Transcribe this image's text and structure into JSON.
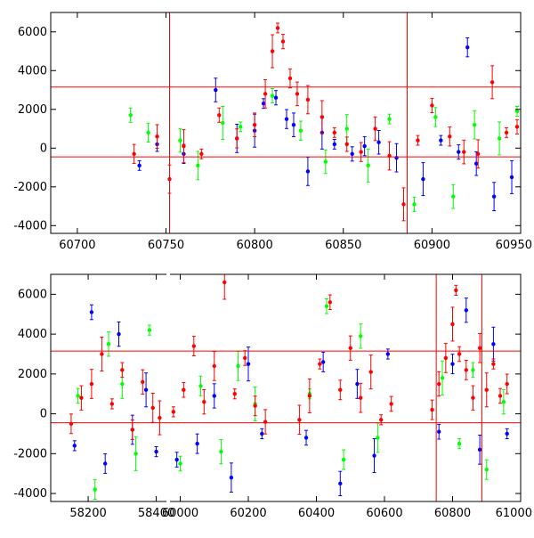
{
  "chart_data": [
    {
      "type": "scatter",
      "title": "",
      "xlabel": "",
      "ylabel": "",
      "xlim": [
        60685,
        60950
      ],
      "ylim": [
        -4400,
        7000
      ],
      "xticks": [
        60700,
        60750,
        60800,
        60850,
        60900,
        60950
      ],
      "xtick_labels": [
        "60700",
        "60750",
        "60800",
        "60850",
        "60900",
        "60950"
      ],
      "yticks": [
        -4000,
        -2000,
        0,
        2000,
        4000,
        6000
      ],
      "ytick_labels": [
        "-4000",
        "-2000",
        "0",
        "2000",
        "4000",
        "6000"
      ],
      "hlines": [
        3150,
        -450
      ],
      "vlines": [
        60752,
        60886
      ],
      "error_bars": true,
      "series": [
        {
          "color": "#0000ff",
          "x": [
            60735,
            60745,
            60760,
            60778,
            60790,
            60800,
            60805,
            60812,
            60818,
            60822,
            60830,
            60838,
            60845,
            60855,
            60862,
            60870,
            60880,
            60895,
            60905,
            60915,
            60920,
            60925,
            60935,
            60945
          ],
          "y": [
            -900,
            200,
            -300,
            3000,
            500,
            900,
            2300,
            2600,
            1500,
            1200,
            -1200,
            800,
            200,
            -300,
            100,
            300,
            -500,
            -1600,
            400,
            -200,
            5200,
            -800,
            -2500,
            -1500
          ]
        },
        {
          "color": "#00ff00",
          "x": [
            60730,
            60740,
            60758,
            60768,
            60782,
            60792,
            60810,
            60826,
            60840,
            60852,
            60864,
            60876,
            60890,
            60902,
            60912,
            60924,
            60938,
            60948
          ],
          "y": [
            1700,
            800,
            400,
            -900,
            1300,
            1100,
            2700,
            900,
            -700,
            1000,
            -900,
            1500,
            -2900,
            1600,
            -2500,
            1200,
            500,
            1900
          ]
        },
        {
          "color": "#ff0000",
          "x": [
            60732,
            60745,
            60752,
            60760,
            60770,
            60780,
            60790,
            60800,
            60806,
            60810,
            60813,
            60816,
            60820,
            60824,
            60830,
            60838,
            60845,
            60852,
            60860,
            60868,
            60876,
            60884,
            60892,
            60900,
            60910,
            60918,
            60926,
            60934,
            60942,
            60948
          ],
          "y": [
            -300,
            600,
            -1600,
            100,
            -300,
            1700,
            500,
            1200,
            2800,
            5000,
            6200,
            5500,
            3600,
            2800,
            2500,
            1600,
            800,
            200,
            -200,
            1000,
            -400,
            -2900,
            400,
            2200,
            600,
            -200,
            -300,
            3400,
            800,
            1100
          ]
        }
      ]
    },
    {
      "type": "scatter",
      "title": "",
      "xlabel": "",
      "ylabel": "",
      "xlim": [
        58090,
        61000
      ],
      "ylim": [
        -4400,
        7000
      ],
      "xticks": [
        58200,
        58400,
        60000,
        60200,
        60400,
        60600,
        60800,
        61000
      ],
      "xtick_labels": [
        "58200",
        "58400",
        "60000",
        "60200",
        "60400",
        "60600",
        "60800",
        "61000"
      ],
      "yticks": [
        -4000,
        -2000,
        0,
        2000,
        4000,
        6000
      ],
      "ytick_labels": [
        "-4000",
        "-2000",
        "0",
        "2000",
        "4000",
        "6000"
      ],
      "hlines": [
        3150,
        -450
      ],
      "vlines": [
        60752,
        60886
      ],
      "error_bars": true,
      "series": [
        {
          "color": "#0000ff",
          "x": [
            58160,
            58210,
            58250,
            58290,
            58330,
            58370,
            58400,
            59990,
            60050,
            60100,
            60150,
            60200,
            60240,
            60370,
            60420,
            60470,
            60520,
            60570,
            60610,
            60760,
            60800,
            60840,
            60880,
            60920,
            60960
          ],
          "y": [
            -1600,
            5100,
            -2500,
            4000,
            -800,
            1200,
            -1900,
            -2300,
            -1500,
            900,
            -3200,
            2500,
            -1000,
            -1200,
            2600,
            -3500,
            1500,
            -2100,
            3000,
            -900,
            2500,
            5200,
            -1800,
            3500,
            -1000
          ]
        },
        {
          "color": "#00ff00",
          "x": [
            58170,
            58220,
            58260,
            58300,
            58340,
            58380,
            60000,
            60060,
            60120,
            60170,
            60220,
            60380,
            60430,
            60480,
            60530,
            60580,
            60770,
            60820,
            60860,
            60900,
            60950
          ],
          "y": [
            900,
            -3800,
            3500,
            1500,
            -2000,
            4200,
            -2500,
            1400,
            -1900,
            2400,
            500,
            1000,
            5400,
            -2300,
            3900,
            -1200,
            1800,
            -1500,
            2200,
            -2800,
            600
          ]
        },
        {
          "color": "#ff0000",
          "x": [
            58150,
            58180,
            58210,
            58240,
            58270,
            58300,
            58330,
            58360,
            58390,
            58410,
            59980,
            60010,
            60040,
            60070,
            60100,
            60130,
            60160,
            60190,
            60220,
            60250,
            60350,
            60380,
            60410,
            60440,
            60470,
            60500,
            60530,
            60560,
            60590,
            60620,
            60740,
            60760,
            60780,
            60800,
            60810,
            60820,
            60840,
            60860,
            60880,
            60900,
            60920,
            60940,
            60960
          ],
          "y": [
            -500,
            800,
            1500,
            3000,
            500,
            2200,
            -800,
            1600,
            300,
            -200,
            100,
            1200,
            3400,
            600,
            2400,
            6600,
            1000,
            2800,
            400,
            -400,
            -300,
            900,
            2500,
            5600,
            1200,
            3300,
            800,
            2100,
            -300,
            500,
            200,
            1500,
            2800,
            4500,
            6200,
            3000,
            2200,
            800,
            3300,
            1200,
            2500,
            900,
            1500
          ]
        }
      ]
    }
  ]
}
